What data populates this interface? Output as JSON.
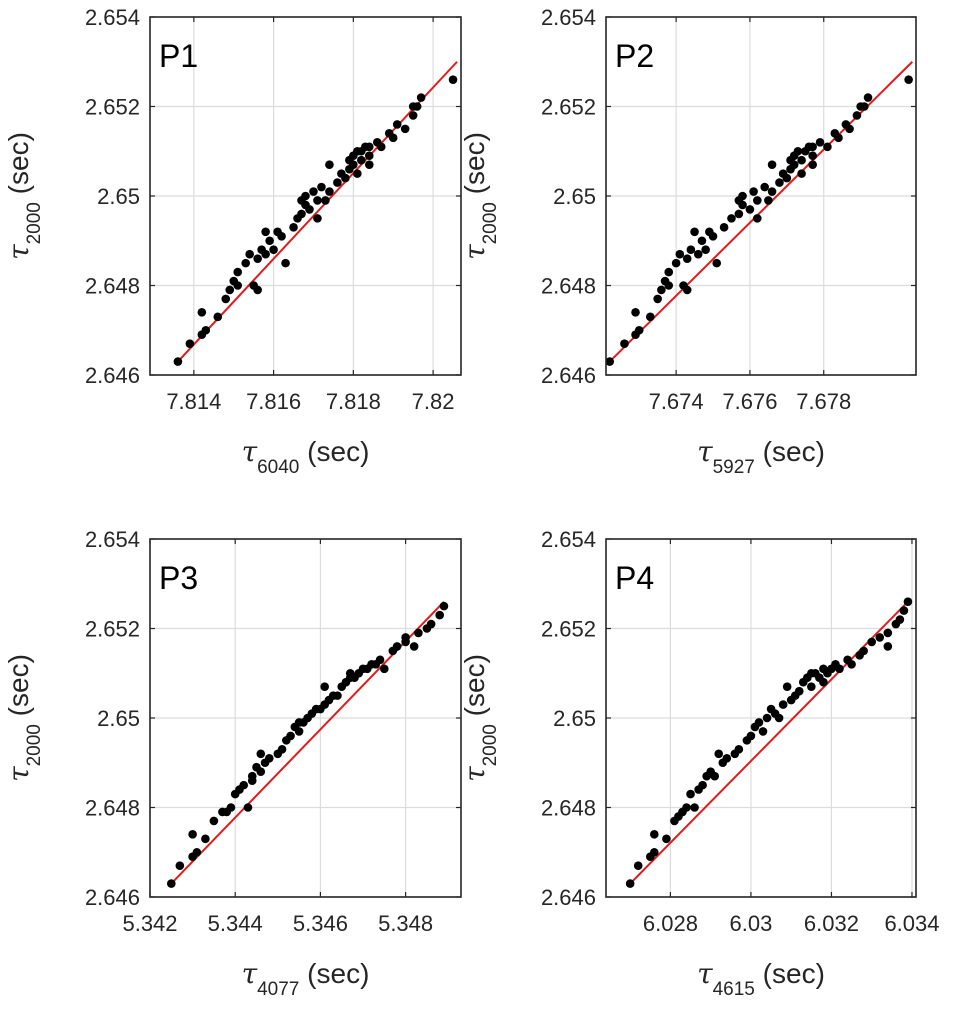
{
  "colors": {
    "fit_line": "#e31a1c",
    "points": "#000000",
    "grid": "#dcdcdc",
    "axes": "#262626"
  },
  "chart_data": [
    {
      "type": "scatter",
      "panel": "P1",
      "xlabel": {
        "symbol": "τ",
        "sub": "6040",
        "unit": "(sec)"
      },
      "ylabel": {
        "symbol": "τ",
        "sub": "2000",
        "unit": "(sec)"
      },
      "xlim": [
        7.8129,
        7.8207
      ],
      "ylim": [
        2.646,
        2.654
      ],
      "xticks": [
        7.814,
        7.816,
        7.818,
        7.82
      ],
      "xtick_labels": [
        "7.814",
        "7.816",
        "7.818",
        "7.82"
      ],
      "yticks": [
        2.646,
        2.648,
        2.65,
        2.652,
        2.654
      ],
      "ytick_labels": [
        "2.646",
        "2.648",
        "2.65",
        "2.652",
        "2.654"
      ],
      "grid": true,
      "fit": [
        [
          7.8136,
          2.6463
        ],
        [
          7.8206,
          2.653
        ]
      ],
      "points": [
        [
          7.8136,
          2.6463
        ],
        [
          7.8139,
          2.6467
        ],
        [
          7.8142,
          2.6469
        ],
        [
          7.8142,
          2.6474
        ],
        [
          7.8143,
          2.647
        ],
        [
          7.8146,
          2.6473
        ],
        [
          7.8148,
          2.6477
        ],
        [
          7.8149,
          2.6479
        ],
        [
          7.815,
          2.6481
        ],
        [
          7.8151,
          2.6483
        ],
        [
          7.8151,
          2.648
        ],
        [
          7.8153,
          2.6485
        ],
        [
          7.8154,
          2.6487
        ],
        [
          7.8155,
          2.648
        ],
        [
          7.8156,
          2.6479
        ],
        [
          7.8156,
          2.6486
        ],
        [
          7.8157,
          2.6488
        ],
        [
          7.8158,
          2.6492
        ],
        [
          7.8158,
          2.6487
        ],
        [
          7.8159,
          2.649
        ],
        [
          7.816,
          2.6488
        ],
        [
          7.8161,
          2.6492
        ],
        [
          7.8162,
          2.6491
        ],
        [
          7.8163,
          2.6485
        ],
        [
          7.8165,
          2.6493
        ],
        [
          7.8166,
          2.6495
        ],
        [
          7.8167,
          2.6499
        ],
        [
          7.8167,
          2.6496
        ],
        [
          7.8168,
          2.65
        ],
        [
          7.8168,
          2.6498
        ],
        [
          7.8169,
          2.6497
        ],
        [
          7.817,
          2.6501
        ],
        [
          7.8171,
          2.6499
        ],
        [
          7.8171,
          2.6495
        ],
        [
          7.8172,
          2.6502
        ],
        [
          7.8173,
          2.6499
        ],
        [
          7.8174,
          2.6507
        ],
        [
          7.8174,
          2.6501
        ],
        [
          7.8176,
          2.6503
        ],
        [
          7.8177,
          2.6505
        ],
        [
          7.8178,
          2.6504
        ],
        [
          7.8179,
          2.6508
        ],
        [
          7.8179,
          2.6506
        ],
        [
          7.818,
          2.6509
        ],
        [
          7.818,
          2.6507
        ],
        [
          7.8181,
          2.651
        ],
        [
          7.8181,
          2.6505
        ],
        [
          7.8182,
          2.6508
        ],
        [
          7.8182,
          2.651
        ],
        [
          7.8183,
          2.6511
        ],
        [
          7.8184,
          2.6509
        ],
        [
          7.8184,
          2.6511
        ],
        [
          7.8184,
          2.6507
        ],
        [
          7.8186,
          2.6512
        ],
        [
          7.8187,
          2.6511
        ],
        [
          7.8189,
          2.6514
        ],
        [
          7.819,
          2.6513
        ],
        [
          7.8191,
          2.6516
        ],
        [
          7.8193,
          2.6515
        ],
        [
          7.8195,
          2.6518
        ],
        [
          7.8195,
          2.652
        ],
        [
          7.8196,
          2.652
        ],
        [
          7.8197,
          2.6522
        ],
        [
          7.8205,
          2.6526
        ]
      ]
    },
    {
      "type": "scatter",
      "panel": "P2",
      "xlabel": {
        "symbol": "τ",
        "sub": "5927",
        "unit": "(sec)"
      },
      "ylabel": {
        "symbol": "τ",
        "sub": "2000",
        "unit": "(sec)"
      },
      "xlim": [
        7.6721,
        7.6805
      ],
      "ylim": [
        2.646,
        2.654
      ],
      "xticks": [
        7.674,
        7.676,
        7.678
      ],
      "xtick_labels": [
        "7.674",
        "7.676",
        "7.678"
      ],
      "yticks": [
        2.646,
        2.648,
        2.65,
        2.652,
        2.654
      ],
      "ytick_labels": [
        "2.646",
        "2.648",
        "2.65",
        "2.652",
        "2.654"
      ],
      "grid": true,
      "fit": [
        [
          7.6722,
          2.6463
        ],
        [
          7.6804,
          2.653
        ]
      ],
      "points": [
        [
          7.6722,
          2.6463
        ],
        [
          7.6726,
          2.6467
        ],
        [
          7.6729,
          2.6469
        ],
        [
          7.6729,
          2.6474
        ],
        [
          7.673,
          2.647
        ],
        [
          7.6733,
          2.6473
        ],
        [
          7.6735,
          2.6477
        ],
        [
          7.6736,
          2.6479
        ],
        [
          7.6737,
          2.6481
        ],
        [
          7.6738,
          2.6483
        ],
        [
          7.6738,
          2.648
        ],
        [
          7.674,
          2.6485
        ],
        [
          7.6741,
          2.6487
        ],
        [
          7.6742,
          2.648
        ],
        [
          7.6743,
          2.6479
        ],
        [
          7.6743,
          2.6486
        ],
        [
          7.6744,
          2.6488
        ],
        [
          7.6745,
          2.6492
        ],
        [
          7.6746,
          2.6487
        ],
        [
          7.6747,
          2.649
        ],
        [
          7.6748,
          2.6488
        ],
        [
          7.6749,
          2.6492
        ],
        [
          7.675,
          2.6491
        ],
        [
          7.6751,
          2.6485
        ],
        [
          7.6753,
          2.6493
        ],
        [
          7.6755,
          2.6495
        ],
        [
          7.6757,
          2.6499
        ],
        [
          7.6757,
          2.6496
        ],
        [
          7.6758,
          2.65
        ],
        [
          7.6758,
          2.6498
        ],
        [
          7.676,
          2.6497
        ],
        [
          7.6761,
          2.6501
        ],
        [
          7.6762,
          2.6499
        ],
        [
          7.6762,
          2.6495
        ],
        [
          7.6764,
          2.6502
        ],
        [
          7.6765,
          2.6499
        ],
        [
          7.6766,
          2.6507
        ],
        [
          7.6766,
          2.6501
        ],
        [
          7.6768,
          2.6503
        ],
        [
          7.6769,
          2.6505
        ],
        [
          7.677,
          2.6504
        ],
        [
          7.6771,
          2.6508
        ],
        [
          7.6771,
          2.6506
        ],
        [
          7.6772,
          2.6509
        ],
        [
          7.6772,
          2.6507
        ],
        [
          7.6773,
          2.651
        ],
        [
          7.6774,
          2.6505
        ],
        [
          7.6774,
          2.6508
        ],
        [
          7.6775,
          2.651
        ],
        [
          7.6776,
          2.6511
        ],
        [
          7.6777,
          2.6509
        ],
        [
          7.6777,
          2.6511
        ],
        [
          7.6777,
          2.6507
        ],
        [
          7.6779,
          2.6512
        ],
        [
          7.6781,
          2.6511
        ],
        [
          7.6783,
          2.6514
        ],
        [
          7.6784,
          2.6513
        ],
        [
          7.6786,
          2.6516
        ],
        [
          7.6787,
          2.6515
        ],
        [
          7.6789,
          2.6518
        ],
        [
          7.679,
          2.652
        ],
        [
          7.6791,
          2.652
        ],
        [
          7.6792,
          2.6522
        ],
        [
          7.6803,
          2.6526
        ]
      ]
    },
    {
      "type": "scatter",
      "panel": "P3",
      "xlabel": {
        "symbol": "τ",
        "sub": "4077",
        "unit": "(sec)"
      },
      "ylabel": {
        "symbol": "τ",
        "sub": "2000",
        "unit": "(sec)"
      },
      "xlim": [
        5.342,
        5.3493
      ],
      "ylim": [
        2.646,
        2.654
      ],
      "xticks": [
        5.342,
        5.344,
        5.346,
        5.348
      ],
      "xtick_labels": [
        "5.342",
        "5.344",
        "5.346",
        "5.348"
      ],
      "yticks": [
        2.646,
        2.648,
        2.65,
        2.652,
        2.654
      ],
      "ytick_labels": [
        "2.646",
        "2.648",
        "2.65",
        "2.652",
        "2.654"
      ],
      "grid": true,
      "fit": [
        [
          5.3425,
          2.6463
        ],
        [
          5.3489,
          2.6526
        ]
      ],
      "points": [
        [
          5.3425,
          2.6463
        ],
        [
          5.3427,
          2.6467
        ],
        [
          5.343,
          2.6469
        ],
        [
          5.343,
          2.6474
        ],
        [
          5.3431,
          2.647
        ],
        [
          5.3433,
          2.6473
        ],
        [
          5.3435,
          2.6477
        ],
        [
          5.3437,
          2.6479
        ],
        [
          5.3438,
          2.6479
        ],
        [
          5.3439,
          2.648
        ],
        [
          5.344,
          2.6483
        ],
        [
          5.3441,
          2.6484
        ],
        [
          5.3442,
          2.6485
        ],
        [
          5.3443,
          2.648
        ],
        [
          5.3444,
          2.6487
        ],
        [
          5.3444,
          2.6486
        ],
        [
          5.3445,
          2.6489
        ],
        [
          5.3446,
          2.6488
        ],
        [
          5.3446,
          2.6492
        ],
        [
          5.3447,
          2.649
        ],
        [
          5.3448,
          2.6491
        ],
        [
          5.345,
          2.6492
        ],
        [
          5.3451,
          2.6493
        ],
        [
          5.3452,
          2.6495
        ],
        [
          5.3453,
          2.6496
        ],
        [
          5.3454,
          2.6498
        ],
        [
          5.3455,
          2.6499
        ],
        [
          5.3455,
          2.6497
        ],
        [
          5.3456,
          2.6499
        ],
        [
          5.3457,
          2.65
        ],
        [
          5.3458,
          2.6501
        ],
        [
          5.3459,
          2.6502
        ],
        [
          5.346,
          2.6502
        ],
        [
          5.3461,
          2.6503
        ],
        [
          5.3461,
          2.6507
        ],
        [
          5.3462,
          2.6504
        ],
        [
          5.3463,
          2.6505
        ],
        [
          5.3464,
          2.6505
        ],
        [
          5.3465,
          2.6507
        ],
        [
          5.3466,
          2.6508
        ],
        [
          5.3467,
          2.6509
        ],
        [
          5.3467,
          2.651
        ],
        [
          5.3468,
          2.6509
        ],
        [
          5.3469,
          2.651
        ],
        [
          5.347,
          2.6511
        ],
        [
          5.3471,
          2.6511
        ],
        [
          5.3472,
          2.6512
        ],
        [
          5.3473,
          2.6512
        ],
        [
          5.3474,
          2.6513
        ],
        [
          5.3475,
          2.6511
        ],
        [
          5.3477,
          2.6515
        ],
        [
          5.3478,
          2.6516
        ],
        [
          5.348,
          2.6517
        ],
        [
          5.348,
          2.6518
        ],
        [
          5.3482,
          2.6516
        ],
        [
          5.3483,
          2.6519
        ],
        [
          5.3485,
          2.652
        ],
        [
          5.3486,
          2.6521
        ],
        [
          5.3488,
          2.6523
        ],
        [
          5.3489,
          2.6525
        ]
      ]
    },
    {
      "type": "scatter",
      "panel": "P4",
      "xlabel": {
        "symbol": "τ",
        "sub": "4615",
        "unit": "(sec)"
      },
      "ylabel": {
        "symbol": "τ",
        "sub": "2000",
        "unit": "(sec)"
      },
      "xlim": [
        6.0264,
        6.0341
      ],
      "ylim": [
        2.646,
        2.654
      ],
      "xticks": [
        6.028,
        6.03,
        6.032,
        6.034
      ],
      "xtick_labels": [
        "6.028",
        "6.03",
        "6.032",
        "6.034"
      ],
      "yticks": [
        2.646,
        2.648,
        2.65,
        2.652,
        2.654
      ],
      "ytick_labels": [
        "2.646",
        "2.648",
        "2.65",
        "2.652",
        "2.654"
      ],
      "grid": true,
      "fit": [
        [
          6.027,
          2.6463
        ],
        [
          6.0339,
          2.6526
        ]
      ],
      "points": [
        [
          6.027,
          2.6463
        ],
        [
          6.0272,
          2.6467
        ],
        [
          6.0275,
          2.6469
        ],
        [
          6.0276,
          2.647
        ],
        [
          6.0276,
          2.6474
        ],
        [
          6.0279,
          2.6473
        ],
        [
          6.0281,
          2.6477
        ],
        [
          6.0282,
          2.6478
        ],
        [
          6.0283,
          2.6479
        ],
        [
          6.0284,
          2.648
        ],
        [
          6.0285,
          2.6483
        ],
        [
          6.0286,
          2.648
        ],
        [
          6.0287,
          2.6484
        ],
        [
          6.0288,
          2.6485
        ],
        [
          6.0289,
          2.6487
        ],
        [
          6.029,
          2.6488
        ],
        [
          6.0291,
          2.6487
        ],
        [
          6.0292,
          2.6492
        ],
        [
          6.0293,
          2.649
        ],
        [
          6.0294,
          2.6491
        ],
        [
          6.0296,
          2.6492
        ],
        [
          6.0297,
          2.6493
        ],
        [
          6.0299,
          2.6495
        ],
        [
          6.03,
          2.6496
        ],
        [
          6.0301,
          2.6498
        ],
        [
          6.0302,
          2.6499
        ],
        [
          6.0303,
          2.6497
        ],
        [
          6.0304,
          2.65
        ],
        [
          6.0305,
          2.6502
        ],
        [
          6.0306,
          2.6501
        ],
        [
          6.0307,
          2.65
        ],
        [
          6.0308,
          2.6503
        ],
        [
          6.0309,
          2.6507
        ],
        [
          6.031,
          2.6504
        ],
        [
          6.0311,
          2.6505
        ],
        [
          6.0312,
          2.6506
        ],
        [
          6.0313,
          2.6508
        ],
        [
          6.0314,
          2.6509
        ],
        [
          6.0315,
          2.651
        ],
        [
          6.0315,
          2.6507
        ],
        [
          6.0316,
          2.651
        ],
        [
          6.0317,
          2.6509
        ],
        [
          6.0318,
          2.6511
        ],
        [
          6.0318,
          2.6508
        ],
        [
          6.0319,
          2.651
        ],
        [
          6.032,
          2.6511
        ],
        [
          6.0321,
          2.6512
        ],
        [
          6.0322,
          2.6511
        ],
        [
          6.0324,
          2.6513
        ],
        [
          6.0325,
          2.6512
        ],
        [
          6.0327,
          2.6514
        ],
        [
          6.0328,
          2.6515
        ],
        [
          6.033,
          2.6517
        ],
        [
          6.0332,
          2.6518
        ],
        [
          6.0334,
          2.6519
        ],
        [
          6.0334,
          2.6516
        ],
        [
          6.0336,
          2.6521
        ],
        [
          6.0337,
          2.6522
        ],
        [
          6.0338,
          2.6524
        ],
        [
          6.0339,
          2.6526
        ]
      ]
    }
  ]
}
